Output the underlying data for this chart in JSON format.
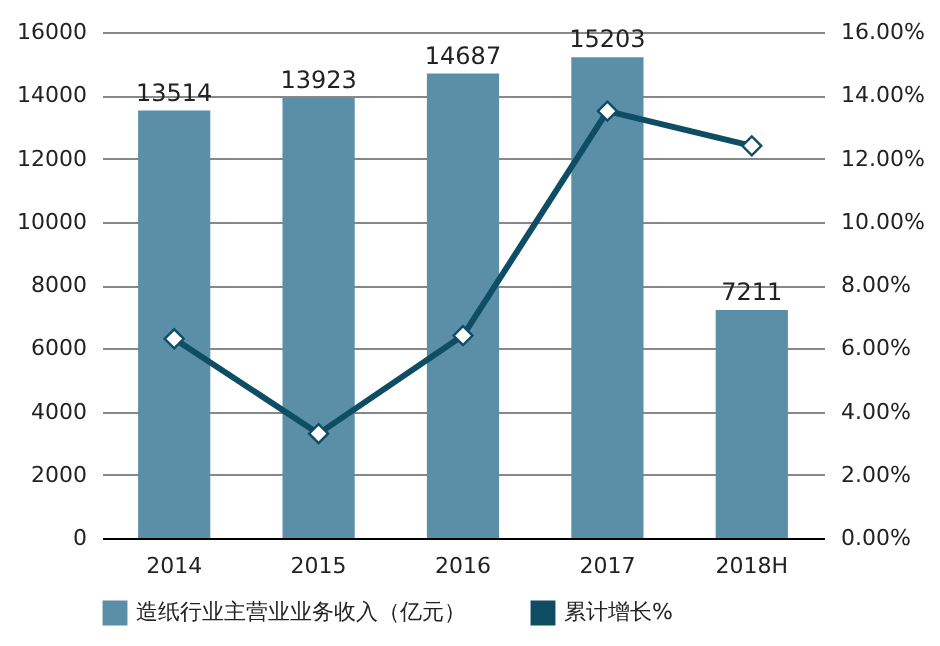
{
  "chart_data": {
    "type": "bar",
    "categories": [
      "2014",
      "2015",
      "2016",
      "2017",
      "2018H"
    ],
    "series": [
      {
        "name": "造纸行业主营业业务收入（亿元）",
        "color": "#5b8fa8",
        "values": [
          13514,
          13923,
          14687,
          15203,
          7211
        ],
        "value_labels": [
          "13514",
          "13923",
          "14687",
          "15203",
          "7211"
        ]
      },
      {
        "name": "累计增长%",
        "type": "line",
        "axis": "y2",
        "color": "#0e4d64",
        "values": [
          6.3,
          3.3,
          6.4,
          13.5,
          12.4
        ]
      }
    ],
    "ylim": [
      0,
      16000
    ],
    "yticks": [
      0,
      2000,
      4000,
      6000,
      8000,
      10000,
      12000,
      14000,
      16000
    ],
    "y2lim": [
      0,
      16
    ],
    "y2ticks": [
      {
        "value": 0,
        "label": "0.00%"
      },
      {
        "value": 2,
        "label": "2.00%"
      },
      {
        "value": 4,
        "label": "4.00%"
      },
      {
        "value": 6,
        "label": "6.00%"
      },
      {
        "value": 8,
        "label": "8.00%"
      },
      {
        "value": 10,
        "label": "10.00%"
      },
      {
        "value": 12,
        "label": "12.00%"
      },
      {
        "value": 14,
        "label": "14.00%"
      },
      {
        "value": 16,
        "label": "16.00%"
      }
    ],
    "grid": "y",
    "legend": "bottom",
    "marker": "diamond",
    "line_style": "solid"
  }
}
